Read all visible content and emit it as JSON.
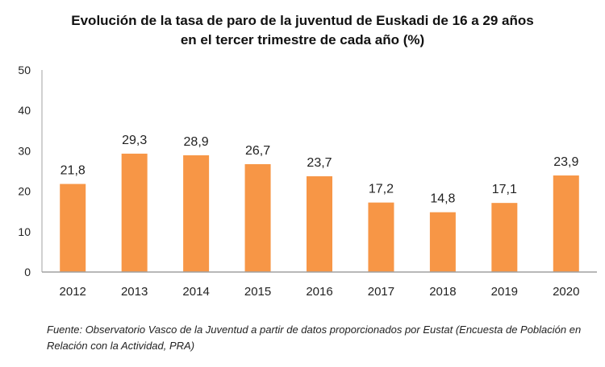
{
  "chart_data": {
    "type": "bar",
    "title_lines": [
      "Evolución de la tasa de paro de la juventud de Euskadi de 16 a 29 años",
      "en el tercer trimestre de cada año (%)"
    ],
    "categories": [
      "2012",
      "2013",
      "2014",
      "2015",
      "2016",
      "2017",
      "2018",
      "2019",
      "2020"
    ],
    "values": [
      21.8,
      29.3,
      28.9,
      26.7,
      23.7,
      17.2,
      14.8,
      17.1,
      23.9
    ],
    "data_labels": [
      "21,8",
      "29,3",
      "28,9",
      "26,7",
      "23,7",
      "17,2",
      "14,8",
      "17,1",
      "23,9"
    ],
    "xlabel": "",
    "ylabel": "",
    "ylim": [
      0,
      50
    ],
    "yticks": [
      "0",
      "10",
      "20",
      "30",
      "40",
      "50"
    ],
    "grid": false,
    "legend": "none",
    "bar_color": "#F79646",
    "axis_color": "#A0A0A0"
  },
  "source": "Fuente: Observatorio Vasco de la Juventud a partir de datos proporcionados por Eustat (Encuesta de Población en Relación con la Actividad, PRA)"
}
